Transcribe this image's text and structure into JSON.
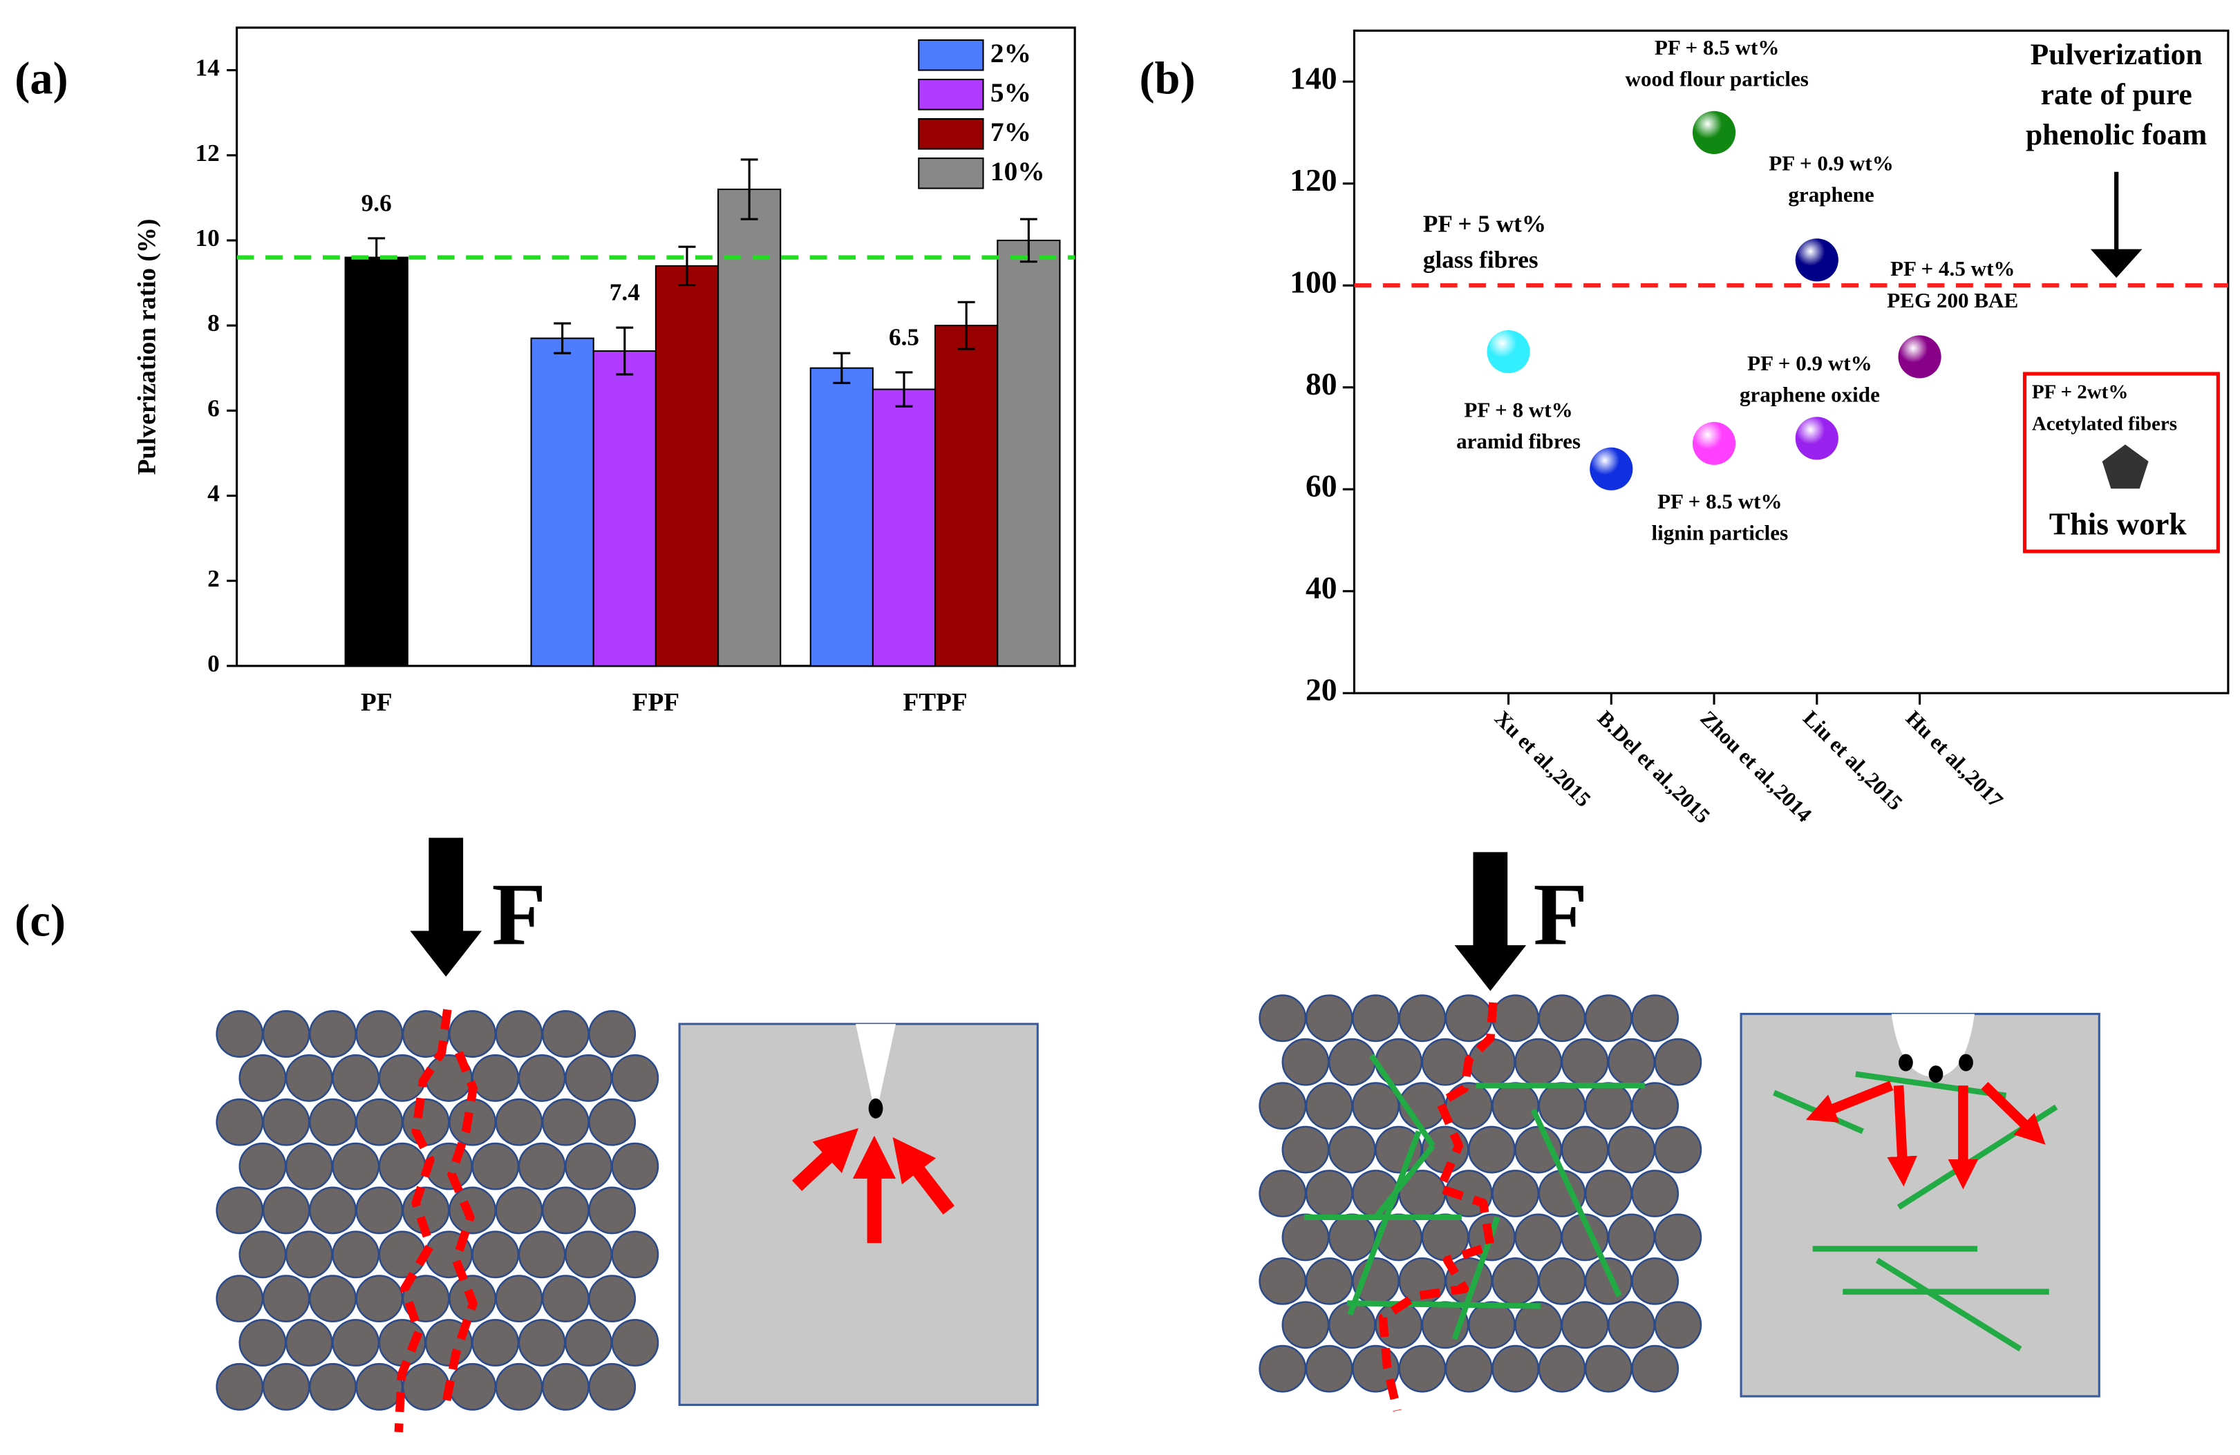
{
  "chart_data": [
    {
      "type": "bar",
      "panel": "(a)",
      "ylabel": "Pulverization ratio (%)",
      "categories": [
        "PF",
        "FPF",
        "FTPF"
      ],
      "series": [
        {
          "color": "#000000",
          "values": [
            9.6,
            null,
            null
          ],
          "errors": [
            0.45,
            null,
            null
          ],
          "labeled": [
            true,
            false,
            false
          ]
        },
        {
          "name": "2%",
          "color": "#4d7cff",
          "values": [
            null,
            7.7,
            7.0
          ],
          "errors": [
            null,
            0.35,
            0.35
          ],
          "labeled": [
            false,
            false,
            false
          ]
        },
        {
          "name": "5%",
          "color": "#b03cff",
          "values": [
            null,
            7.4,
            6.5
          ],
          "errors": [
            null,
            0.55,
            0.4
          ],
          "labeled": [
            false,
            true,
            true
          ]
        },
        {
          "name": "7%",
          "color": "#990000",
          "values": [
            null,
            9.4,
            8.0
          ],
          "errors": [
            null,
            0.45,
            0.55
          ],
          "labeled": [
            false,
            false,
            false
          ]
        },
        {
          "name": "10%",
          "color": "#888888",
          "values": [
            null,
            11.2,
            10.0
          ],
          "errors": [
            null,
            0.7,
            0.5
          ],
          "labeled": [
            false,
            false,
            false
          ]
        }
      ],
      "ylim": [
        0,
        15
      ],
      "yticks": [
        0,
        2,
        4,
        6,
        8,
        10,
        12,
        14
      ],
      "reference_line": {
        "value": 9.6,
        "color": "#22dd22"
      },
      "legend": "upper right"
    },
    {
      "type": "scatter",
      "panel": "(b)",
      "xlim": [
        -0.5,
        8
      ],
      "xticks": [
        {
          "value": 1,
          "label": "Xu et al.,2015"
        },
        {
          "value": 2,
          "label": "B.Del et al.,2015"
        },
        {
          "value": 3,
          "label": "Zhou et al.,2014"
        },
        {
          "value": 4,
          "label": "Liu et al.,2015"
        },
        {
          "value": 5,
          "label": "Hu et al.,2017"
        }
      ],
      "ylim": [
        20,
        150
      ],
      "yticks": [
        20,
        40,
        60,
        80,
        100,
        120,
        140
      ],
      "points": [
        {
          "x": 1,
          "y": 87,
          "color": "#33eeff",
          "label": [
            "PF + 8 wt%",
            "aramid fibres"
          ]
        },
        {
          "x": 2,
          "y": 64,
          "color": "#1030e0"
        },
        {
          "x": 3,
          "y": 69,
          "color": "#ff40ff",
          "label": [
            "PF + 8.5 wt%",
            "lignin particles"
          ]
        },
        {
          "x": 3,
          "y": 130,
          "color": "#118811",
          "label": [
            "PF + 8.5 wt%",
            "wood flour particles"
          ]
        },
        {
          "x": 4,
          "y": 70,
          "color": "#9922ee",
          "label": [
            "PF + 0.9 wt%",
            "graphene oxide"
          ]
        },
        {
          "x": 4,
          "y": 105,
          "color": "#000088",
          "label": [
            "PF + 0.9 wt%",
            "graphene"
          ]
        },
        {
          "x": 5,
          "y": 86,
          "color": "#880088",
          "label": [
            "PF + 4.5 wt%",
            "PEG 200 BAE"
          ]
        }
      ],
      "reference_line": {
        "value": 100,
        "color": "#ff2020",
        "label": [
          "PF + 5 wt%",
          "glass fibres"
        ]
      },
      "reference_note": [
        "Pulverization",
        "rate of pure",
        "phenolic foam"
      ],
      "this_work": {
        "x": 7,
        "y": 64,
        "color": "#333333",
        "label": [
          "PF + 2wt%",
          "Acetylated fibers"
        ],
        "caption": "This work"
      }
    }
  ],
  "diagram": {
    "panel": "(c)",
    "force_labels": [
      "F",
      "F"
    ]
  }
}
